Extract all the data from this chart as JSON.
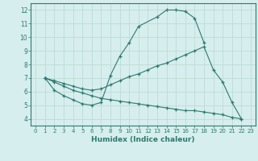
{
  "line1_x": [
    1,
    2,
    3,
    4,
    5,
    6,
    7,
    8,
    9,
    10,
    11,
    13,
    14,
    15,
    16,
    17,
    18
  ],
  "line1_y": [
    7.0,
    6.1,
    5.7,
    5.4,
    5.1,
    5.0,
    5.2,
    7.2,
    8.6,
    9.6,
    10.8,
    11.5,
    12.0,
    12.0,
    11.9,
    11.4,
    9.6
  ],
  "line2_x": [
    1,
    2,
    3,
    4,
    5,
    6,
    7,
    8,
    9,
    10,
    11,
    12,
    13,
    14,
    15,
    16,
    17,
    18,
    19,
    20,
    21,
    22
  ],
  "line2_y": [
    7.0,
    6.8,
    6.6,
    6.4,
    6.2,
    6.1,
    6.2,
    6.5,
    6.8,
    7.1,
    7.3,
    7.6,
    7.9,
    8.1,
    8.4,
    8.7,
    9.0,
    9.3,
    7.6,
    6.7,
    5.2,
    4.0
  ],
  "line3_x": [
    1,
    2,
    3,
    4,
    5,
    6,
    7,
    8,
    9,
    10,
    11,
    12,
    13,
    14,
    15,
    16,
    17,
    18,
    19,
    20,
    21,
    22
  ],
  "line3_y": [
    7.0,
    6.7,
    6.4,
    6.1,
    5.9,
    5.7,
    5.5,
    5.4,
    5.3,
    5.2,
    5.1,
    5.0,
    4.9,
    4.8,
    4.7,
    4.6,
    4.6,
    4.5,
    4.4,
    4.3,
    4.1,
    4.0
  ],
  "color": "#2d7a6e",
  "bg_color": "#d6eeed",
  "grid_color": "#b8d8d4",
  "xlabel": "Humidex (Indice chaleur)",
  "xlim": [
    -0.5,
    23.5
  ],
  "ylim": [
    3.5,
    12.5
  ],
  "yticks": [
    4,
    5,
    6,
    7,
    8,
    9,
    10,
    11,
    12
  ],
  "xticks": [
    0,
    1,
    2,
    3,
    4,
    5,
    6,
    7,
    8,
    9,
    10,
    11,
    12,
    13,
    14,
    15,
    16,
    17,
    18,
    19,
    20,
    21,
    22,
    23
  ]
}
